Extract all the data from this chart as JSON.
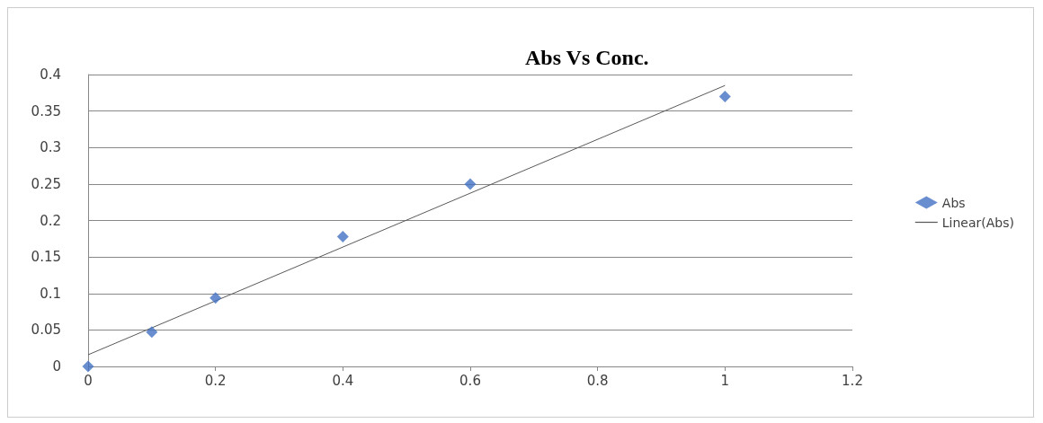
{
  "chart_data": {
    "type": "scatter",
    "title": "Abs Vs Conc.",
    "series": [
      {
        "name": "Abs",
        "color": "#4472c4",
        "marker": "diamond",
        "x": [
          0,
          0.1,
          0.2,
          0.4,
          0.6,
          1
        ],
        "values": [
          0,
          0.047,
          0.094,
          0.178,
          0.25,
          0.37
        ]
      },
      {
        "name": "Linear(Abs)",
        "type": "line",
        "color": "#595959",
        "marker": "none",
        "x": [
          0,
          1
        ],
        "values": [
          0.016,
          0.385
        ]
      }
    ],
    "xlim": [
      0,
      1.2
    ],
    "xticks": [
      0,
      0.2,
      0.4,
      0.6,
      0.8,
      1,
      1.2
    ],
    "ylim": [
      0,
      0.4
    ],
    "yticks": [
      0,
      0.05,
      0.1,
      0.15,
      0.2,
      0.25,
      0.3,
      0.35,
      0.4
    ],
    "grid": "y",
    "legend": "right"
  }
}
